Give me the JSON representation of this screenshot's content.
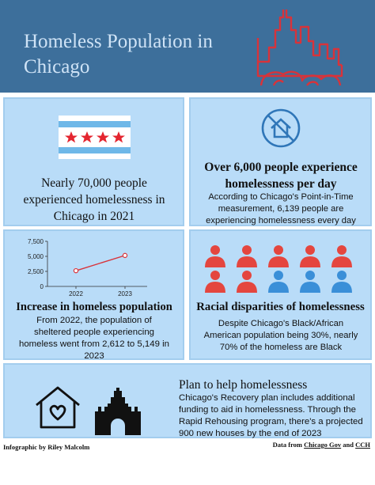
{
  "header": {
    "title": "Homeless Population in Chicago",
    "colors": {
      "band": "#3d6f9b",
      "title": "#cfe3f6",
      "skyline": "#d8333a"
    }
  },
  "panel1": {
    "stat": "Nearly 70,000 people experienced homelessness in Chicago in 2021",
    "flag_colors": {
      "stripe": "#6fb8e8",
      "star": "#e4252f"
    }
  },
  "panel2": {
    "title": "Over 6,000 people experience homelessness per day",
    "body": "According to Chicago's Point-in-Time measurement, 6,139 people are experiencing homelessness every day"
  },
  "panel3": {
    "title": "Increase in homeless population",
    "body": "From 2022, the population of sheltered people experiencing homeless went from 2,612 to 5,149 in 2023"
  },
  "panel4": {
    "title": "Racial disparities of homelessness",
    "body": "Despite Chicago's Black/African American population being 30%, nearly 70% of the homeless are Black",
    "people": {
      "total": 10,
      "highlighted": 7,
      "colors": {
        "highlighted": "#e4463f",
        "other": "#3a8fd8"
      }
    }
  },
  "panel5": {
    "title": "Plan to help homelessness",
    "body": "Chicago's Recovery plan includes additional funding to aid in homelessness. Through the Rapid Rehousing program, there's a projected 900 new houses by the end of 2023"
  },
  "footer": {
    "credit": "Infographic by Riley Malcolm",
    "source_prefix": "Data from",
    "source_1": "Chicago Gov",
    "source_and": "and",
    "source_2": "CCH"
  },
  "chart_data": {
    "type": "line",
    "x": [
      "2022",
      "2023"
    ],
    "series": [
      {
        "values": [
          2612,
          5149
        ],
        "color": "#d8333a"
      }
    ],
    "yticks": [
      "7,500",
      "5,000",
      "2,500",
      "0"
    ],
    "ylim": [
      0,
      7500
    ],
    "grid": false
  }
}
